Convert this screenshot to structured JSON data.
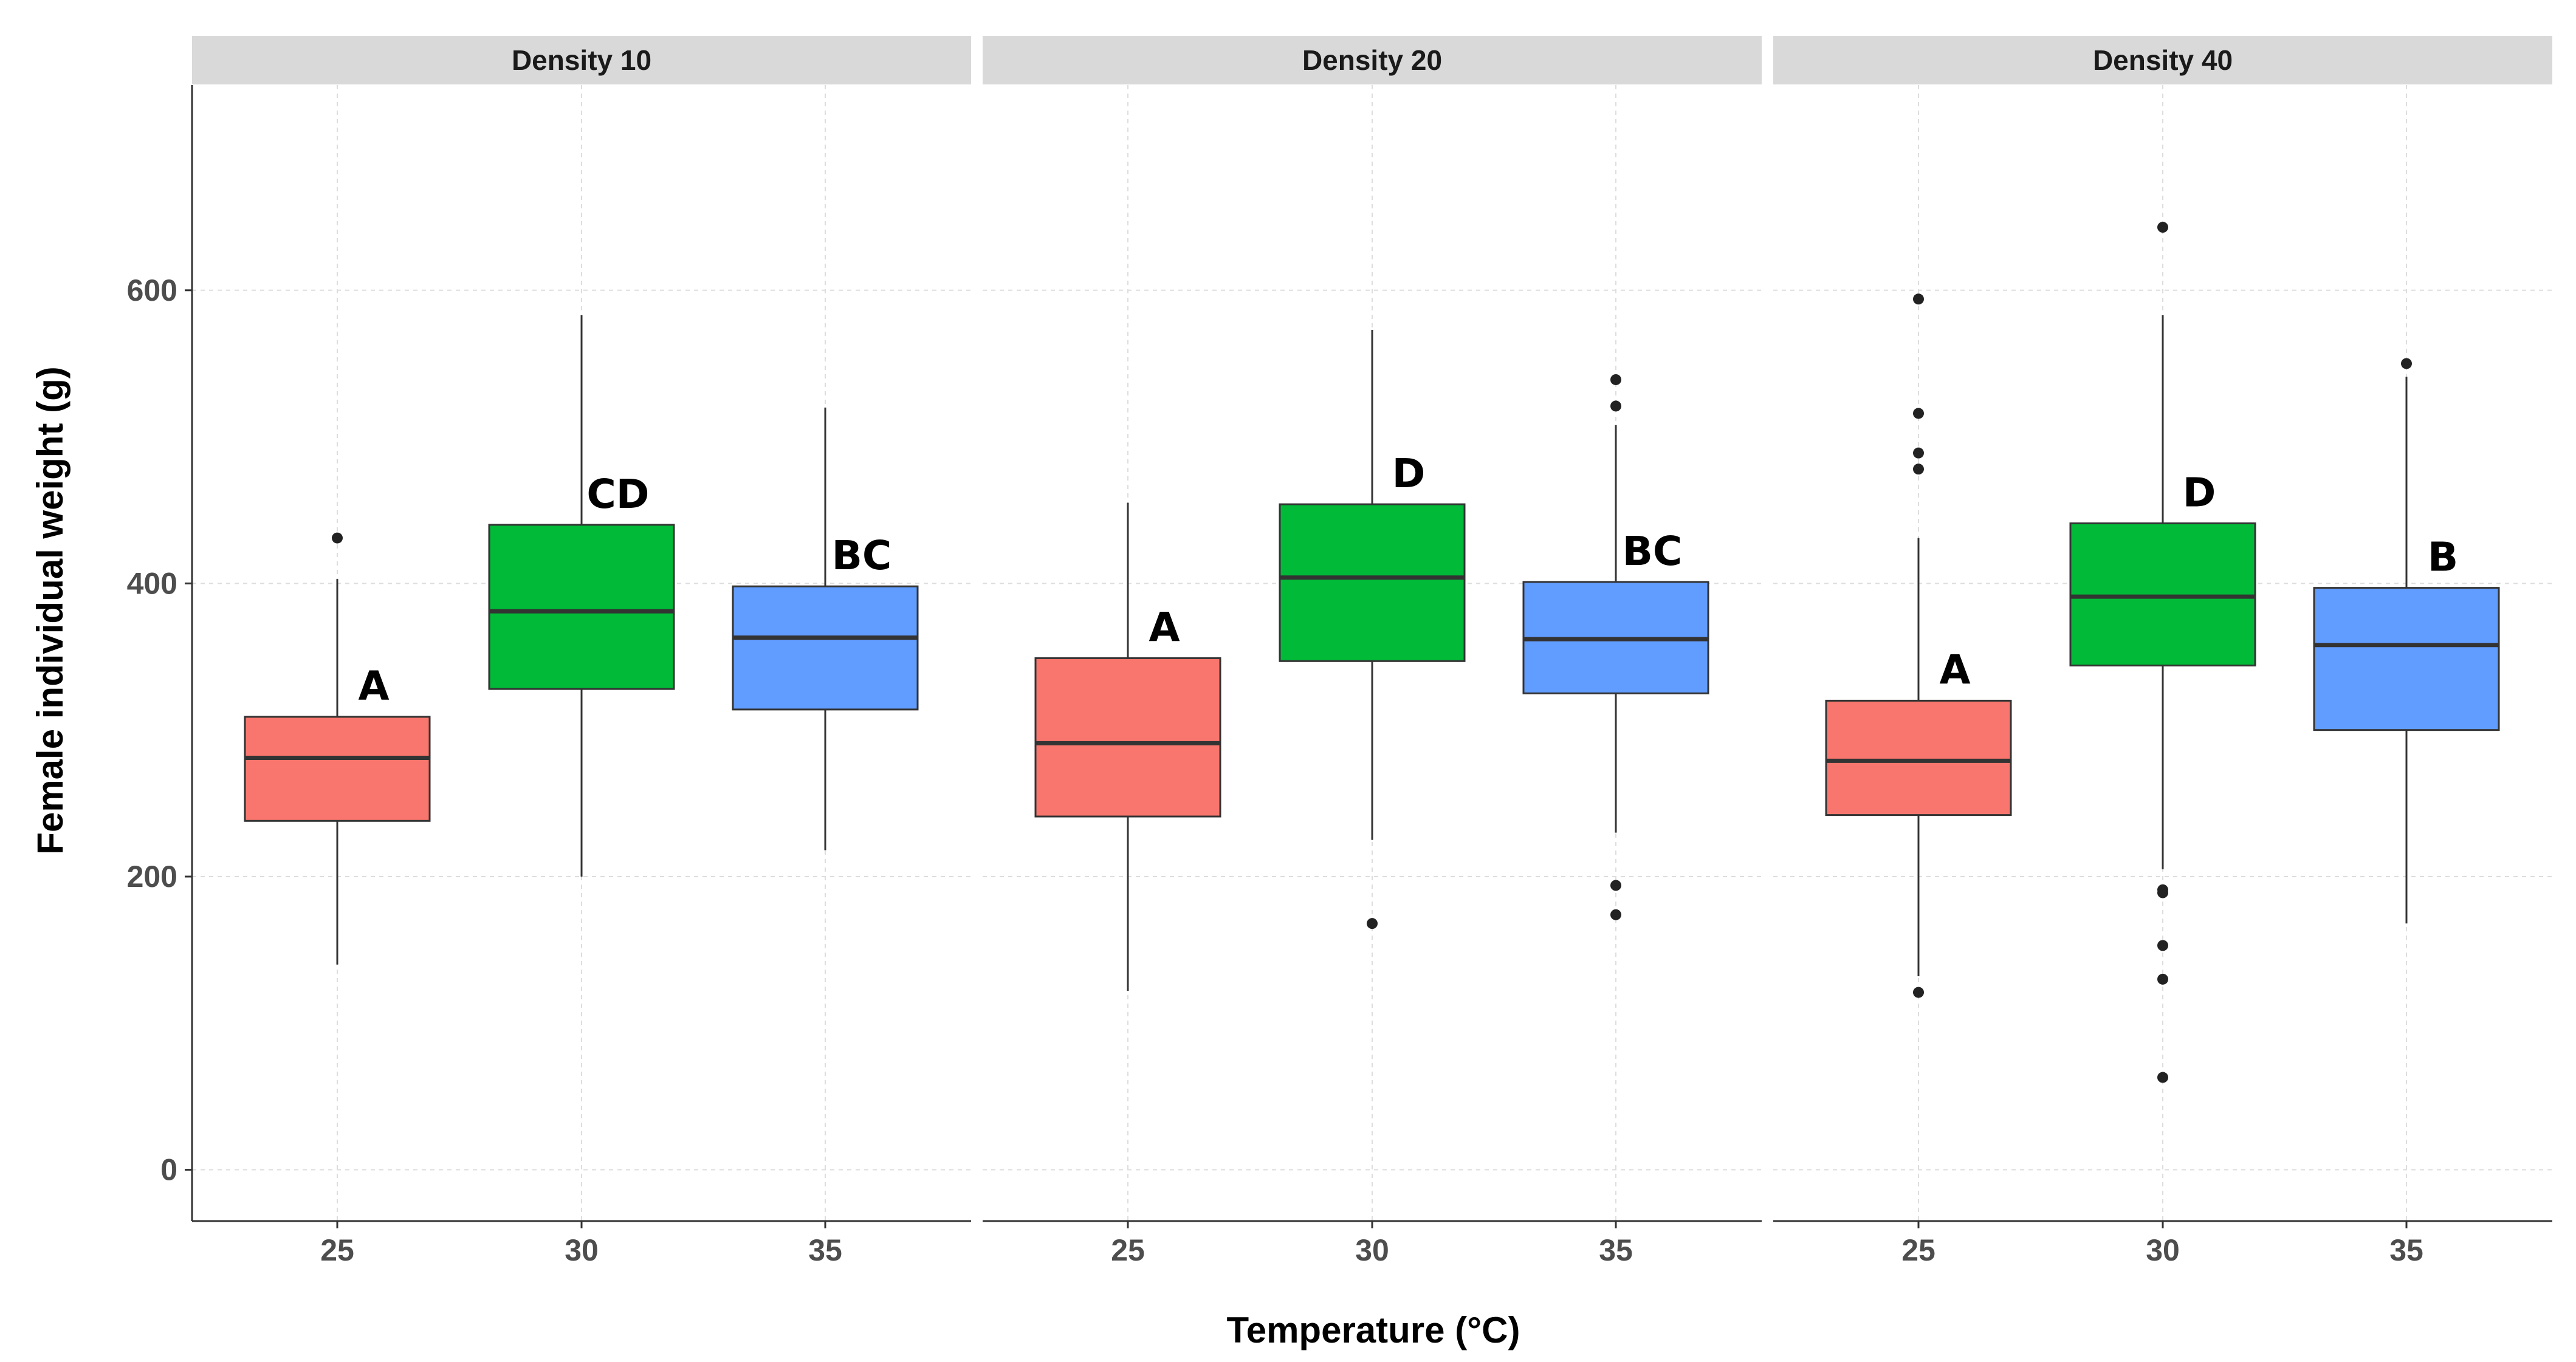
{
  "chart_data": {
    "type": "boxplot",
    "facet_variable": "Density",
    "xlabel": "Temperature (°C)",
    "ylabel": "Female individual weight (g)",
    "ylim": [
      -35,
      740
    ],
    "yticks": [
      0,
      200,
      400,
      600
    ],
    "grid": true,
    "categories": [
      "25",
      "30",
      "35"
    ],
    "colors": {
      "25": "#F8766D",
      "30": "#00BA38",
      "35": "#619CFF"
    },
    "panels": [
      {
        "strip_label": "Density 10",
        "boxes": [
          {
            "category": "25",
            "q1": 238,
            "median": 281,
            "q3": 309,
            "whisker_low": 140,
            "whisker_high": 403,
            "outliers": [
              431
            ],
            "letter": "A"
          },
          {
            "category": "30",
            "q1": 328,
            "median": 381,
            "q3": 440,
            "whisker_low": 200,
            "whisker_high": 583,
            "outliers": [],
            "letter": "CD"
          },
          {
            "category": "35",
            "q1": 314,
            "median": 363,
            "q3": 398,
            "whisker_low": 218,
            "whisker_high": 520,
            "outliers": [],
            "letter": "BC"
          }
        ]
      },
      {
        "strip_label": "Density 20",
        "boxes": [
          {
            "category": "25",
            "q1": 241,
            "median": 291,
            "q3": 349,
            "whisker_low": 122,
            "whisker_high": 455,
            "outliers": [],
            "letter": "A"
          },
          {
            "category": "30",
            "q1": 347,
            "median": 404,
            "q3": 454,
            "whisker_low": 225,
            "whisker_high": 573,
            "outliers": [
              168
            ],
            "letter": "D"
          },
          {
            "category": "35",
            "q1": 325,
            "median": 362,
            "q3": 401,
            "whisker_low": 230,
            "whisker_high": 508,
            "outliers": [
              539,
              521,
              194,
              174
            ],
            "letter": "BC"
          }
        ]
      },
      {
        "strip_label": "Density 40",
        "boxes": [
          {
            "category": "25",
            "q1": 242,
            "median": 279,
            "q3": 320,
            "whisker_low": 132,
            "whisker_high": 431,
            "outliers": [
              594,
              516,
              489,
              478,
              121
            ],
            "letter": "A"
          },
          {
            "category": "30",
            "q1": 344,
            "median": 391,
            "q3": 441,
            "whisker_low": 205,
            "whisker_high": 583,
            "outliers": [
              643,
              191,
              189,
              153,
              130,
              63
            ],
            "letter": "D"
          },
          {
            "category": "35",
            "q1": 300,
            "median": 358,
            "q3": 397,
            "whisker_low": 168,
            "whisker_high": 541,
            "outliers": [
              550
            ],
            "letter": "B"
          }
        ]
      }
    ]
  }
}
